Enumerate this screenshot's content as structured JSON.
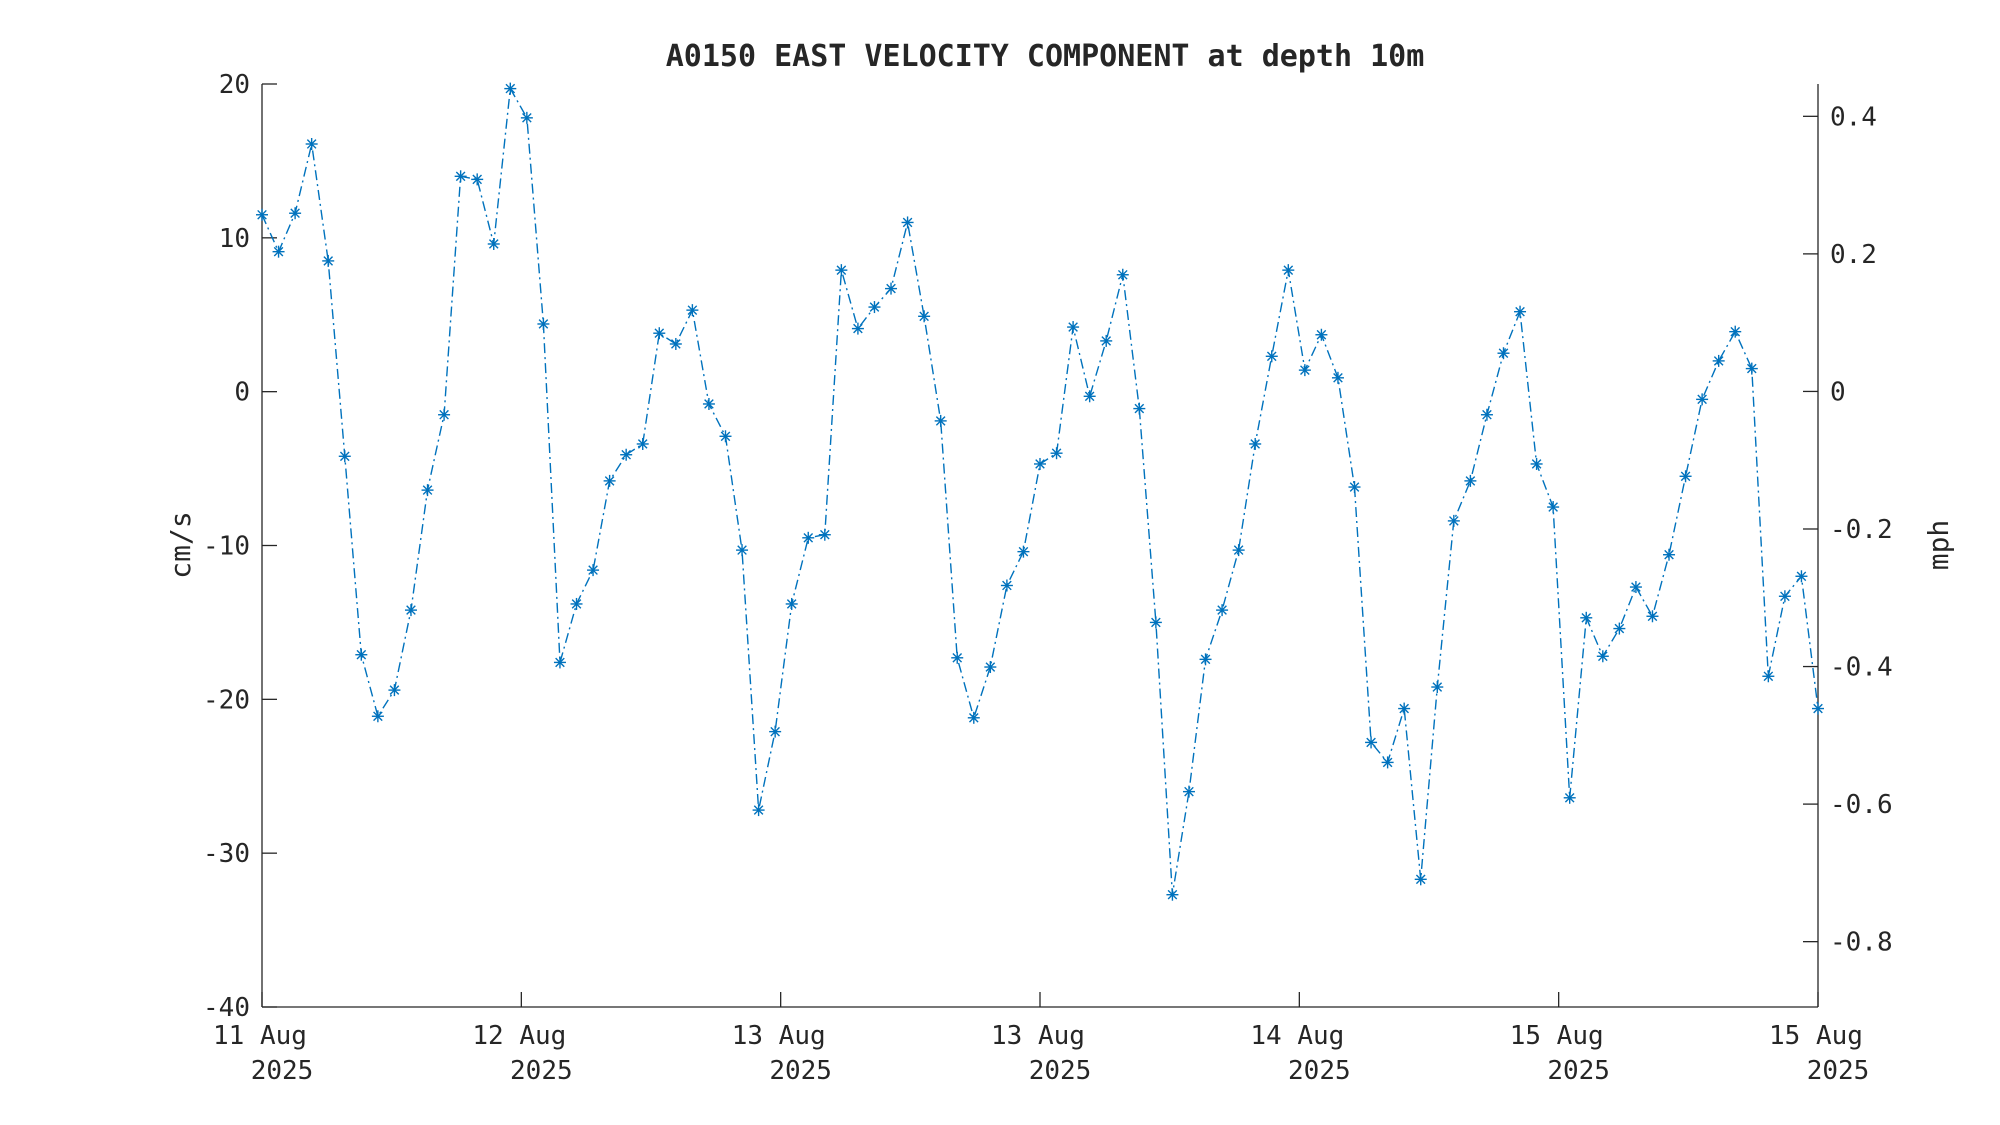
{
  "chart_data": {
    "type": "line",
    "title": "A0150 EAST VELOCITY COMPONENT at depth 10m",
    "ylabel": "cm/s",
    "y2label": "mph",
    "ylim": [
      -40,
      20
    ],
    "y2lim": [
      -0.895,
      0.447
    ],
    "yticks": [
      "20",
      "10",
      "0",
      "-10",
      "-20",
      "-30",
      "-40"
    ],
    "y2ticks": [
      "0.4",
      "0.2",
      "0",
      "-0.2",
      "-0.4",
      "-0.6",
      "-0.8"
    ],
    "y2tick_values": [
      0.4,
      0.2,
      0,
      -0.2,
      -0.4,
      -0.6,
      -0.8
    ],
    "xticks": [
      {
        "day": "11 Aug",
        "year": "2025"
      },
      {
        "day": "12 Aug",
        "year": "2025"
      },
      {
        "day": "13 Aug",
        "year": "2025"
      },
      {
        "day": "13 Aug",
        "year": "2025"
      },
      {
        "day": "14 Aug",
        "year": "2025"
      },
      {
        "day": "15 Aug",
        "year": "2025"
      },
      {
        "day": "15 Aug",
        "year": "2025"
      }
    ],
    "line_style": "dash-dot",
    "marker": "asterisk",
    "color": "#0072BD",
    "grid": false,
    "series": [
      {
        "values": [
          11.5,
          9.1,
          11.6,
          16.1,
          8.5,
          -4.2,
          -17.1,
          -21.1,
          -19.4,
          -14.2,
          -6.4,
          -1.5,
          14.0,
          13.8,
          9.6,
          19.7,
          17.8,
          4.4,
          -17.6,
          -13.8,
          -11.6,
          -5.8,
          -4.1,
          -3.4,
          3.8,
          3.1,
          5.3,
          -0.8,
          -2.9,
          -10.3,
          -27.2,
          -22.1,
          -13.8,
          -9.5,
          -9.3,
          7.9,
          4.1,
          5.5,
          6.7,
          11.0,
          4.9,
          -1.9,
          -17.3,
          -21.2,
          -17.9,
          -12.6,
          -10.4,
          -4.7,
          -4.0,
          4.2,
          -0.3,
          3.3,
          7.6,
          -1.1,
          -15.0,
          -32.7,
          -26.0,
          -17.4,
          -14.2,
          -10.3,
          -3.4,
          2.3,
          7.9,
          1.4,
          3.7,
          0.9,
          -6.2,
          -22.8,
          -24.1,
          -20.6,
          -31.7,
          -19.2,
          -8.4,
          -5.8,
          -1.5,
          2.5,
          5.2,
          -4.7,
          -7.5,
          -26.4,
          -14.7,
          -17.2,
          -15.4,
          -12.7,
          -14.6,
          -10.6,
          -5.5,
          -0.5,
          2.0,
          3.9,
          1.5,
          -18.5,
          -13.3,
          -12.0,
          -20.6
        ]
      }
    ]
  }
}
